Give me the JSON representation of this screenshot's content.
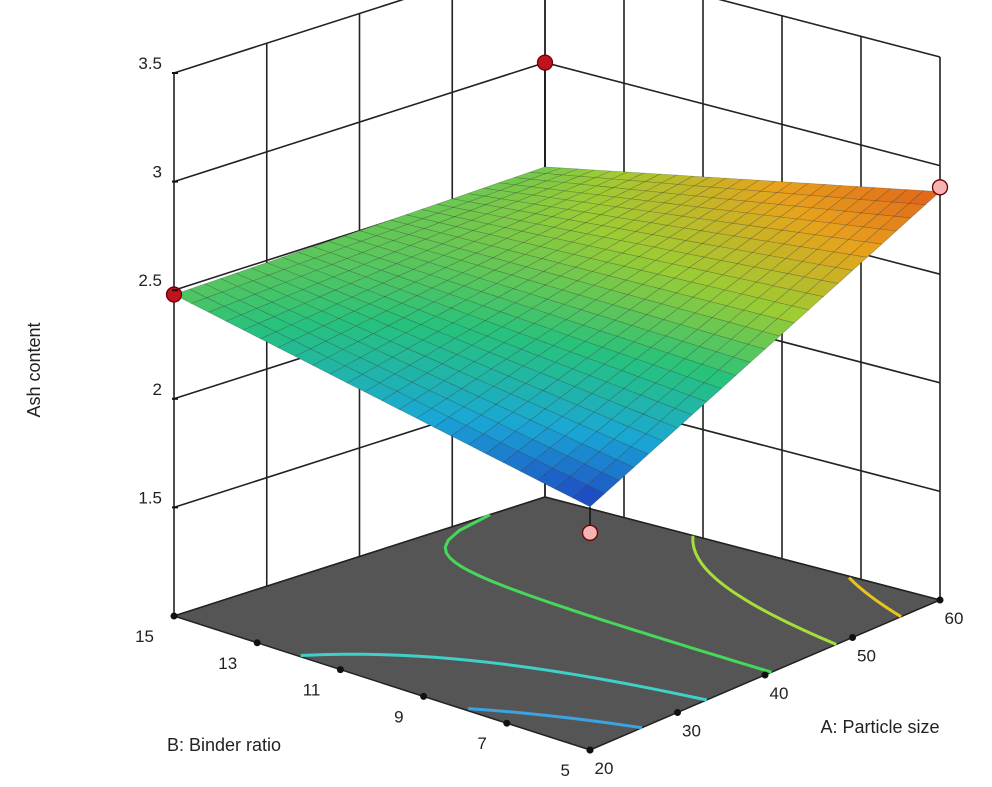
{
  "chart_data": {
    "type": "surface3d",
    "title": "",
    "zlabel": "Ash content",
    "xlabel": "A: Particle size",
    "ylabel": "B: Binder ratio",
    "zlim": [
      1.0,
      3.5
    ],
    "z_ticks": [
      "1.5",
      "2",
      "2.5",
      "3",
      "3.5"
    ],
    "x_ticks": [
      "20",
      "30",
      "40",
      "50",
      "60"
    ],
    "y_ticks": [
      "5",
      "7",
      "9",
      "11",
      "13",
      "15"
    ],
    "xlim": [
      20,
      60
    ],
    "ylim": [
      5,
      15
    ],
    "surface_corners": [
      {
        "x": 20,
        "y": 5,
        "z": 2.12
      },
      {
        "x": 60,
        "y": 5,
        "z": 2.88
      },
      {
        "x": 60,
        "y": 15,
        "z": 2.52
      },
      {
        "x": 20,
        "y": 15,
        "z": 2.48
      }
    ],
    "colormap": [
      "#1f3fbf",
      "#1aa7d6",
      "#27c27c",
      "#9ccc33",
      "#e8a21c",
      "#e0601a"
    ],
    "design_points": [
      {
        "x": 20,
        "y": 15,
        "z": 2.48,
        "position": "above"
      },
      {
        "x": 60,
        "y": 5,
        "z": 2.9,
        "position": "above"
      },
      {
        "x": 20,
        "y": 5,
        "z": 2.0,
        "position": "below"
      },
      {
        "x": 60,
        "y": 15,
        "z": 3.0,
        "position": "above"
      }
    ],
    "contours": [
      {
        "color": "#3aa3e0"
      },
      {
        "color": "#3fd0c8"
      },
      {
        "color": "#46d85a"
      },
      {
        "color": "#a6df3a"
      },
      {
        "color": "#e8c41e"
      }
    ],
    "floor_color": "#555555",
    "grid": true
  }
}
